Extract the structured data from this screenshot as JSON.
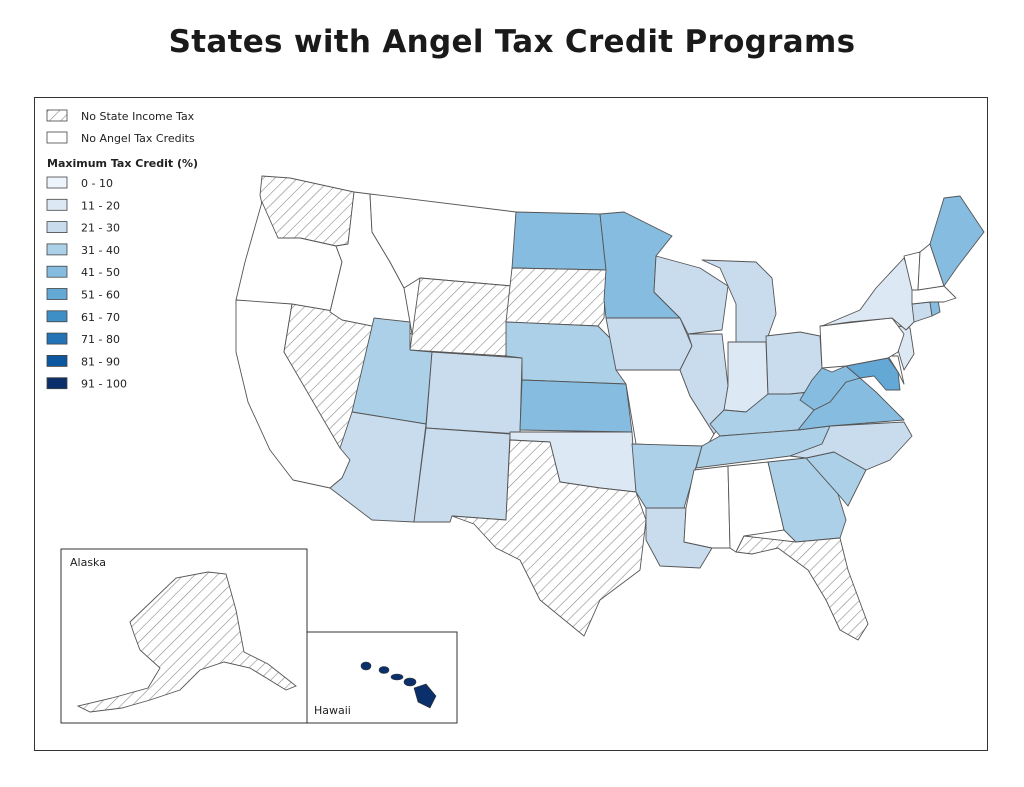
{
  "title": "States with Angel Tax Credit Programs",
  "legend": {
    "no_income_tax": "No State Income Tax",
    "no_credits": "No Angel Tax Credits",
    "scale_title": "Maximum Tax Credit (%)",
    "classes": [
      {
        "label": "0 - 10",
        "color": "#eef4fb"
      },
      {
        "label": "11 - 20",
        "color": "#dce8f4"
      },
      {
        "label": "21 - 30",
        "color": "#c9dcee"
      },
      {
        "label": "31 - 40",
        "color": "#acd0e8"
      },
      {
        "label": "41 - 50",
        "color": "#86bcdf"
      },
      {
        "label": "51 - 60",
        "color": "#64a8d6"
      },
      {
        "label": "61 - 70",
        "color": "#3f8fc7"
      },
      {
        "label": "71 - 80",
        "color": "#2373b6"
      },
      {
        "label": "81 - 90",
        "color": "#0d56a0"
      },
      {
        "label": "91 - 100",
        "color": "#0a2f6b"
      }
    ]
  },
  "insets": {
    "alaska": "Alaska",
    "hawaii": "Hawaii"
  },
  "states": {
    "washington": "no-income-tax",
    "oregon": "none",
    "california": "none",
    "nevada": "no-income-tax",
    "idaho": "none",
    "montana": "none",
    "wyoming": "no-income-tax",
    "utah": "31-40",
    "arizona": "21-30",
    "colorado": "21-30",
    "new_mexico": "21-30",
    "north_dakota": "41-50",
    "south_dakota": "no-income-tax",
    "nebraska": "31-40",
    "kansas": "41-50",
    "oklahoma": "11-20",
    "texas": "no-income-tax",
    "minnesota": "41-50",
    "iowa": "21-30",
    "missouri": "none",
    "arkansas": "31-40",
    "louisiana": "21-30",
    "wisconsin": "21-30",
    "illinois": "21-30",
    "michigan": "21-30",
    "indiana": "11-20",
    "ohio": "21-30",
    "kentucky": "31-40",
    "tennessee": "31-40",
    "mississippi": "none",
    "alabama": "none",
    "georgia": "31-40",
    "florida": "no-income-tax",
    "south_carolina": "31-40",
    "north_carolina": "21-30",
    "virginia": "41-50",
    "west_virginia": "41-50",
    "maryland": "51-60",
    "delaware": "none",
    "new_jersey": "11-20",
    "pennsylvania": "none",
    "new_york": "11-20",
    "connecticut": "21-30",
    "rhode_island": "41-50",
    "massachusetts": "none",
    "vermont": "none",
    "new_hampshire": "none",
    "maine": "41-50",
    "alaska": "no-income-tax",
    "hawaii": "91-100"
  }
}
